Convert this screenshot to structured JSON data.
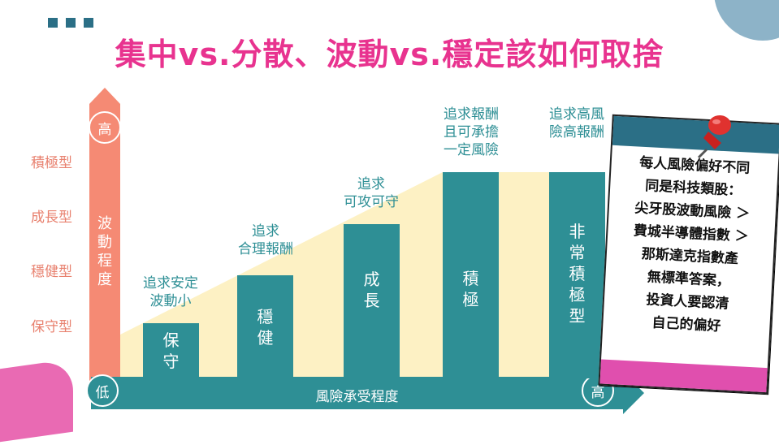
{
  "title": "集中vs.分散、波動vs.穩定該如何取捨",
  "y_axis": {
    "top_label": "高",
    "bottom_label": "低",
    "label": "波動程度",
    "levels": [
      "積極型",
      "成長型",
      "穩健型",
      "保守型"
    ]
  },
  "x_axis": {
    "label": "風險承受程度",
    "end_label": "高"
  },
  "bars": [
    {
      "label": "保守",
      "caption": [
        "追求安定",
        "波動小"
      ]
    },
    {
      "label": "穩健",
      "caption": [
        "追求",
        "合理報酬"
      ]
    },
    {
      "label": "成長",
      "caption": [
        "追求",
        "可攻可守"
      ]
    },
    {
      "label": "積極",
      "caption": [
        "追求報酬",
        "且可承擔",
        "一定風險"
      ]
    },
    {
      "label": "非常積極型",
      "caption": [
        "追求高風",
        "險高報酬"
      ]
    }
  ],
  "note": {
    "lines": [
      "每人風險偏好不同",
      "同是科技類股：",
      "尖牙股波動風險 ＞",
      "費城半導體指數 ＞",
      "那斯達克指數產",
      "無標準答案，",
      "投資人要認清",
      "自己的偏好"
    ]
  },
  "colors": {
    "title": "#e8338f",
    "teal": "#2e8f95",
    "salmon": "#f58a74",
    "cream": "#fdf1c4",
    "pink": "#e04fae",
    "navy": "#2b6f86"
  }
}
